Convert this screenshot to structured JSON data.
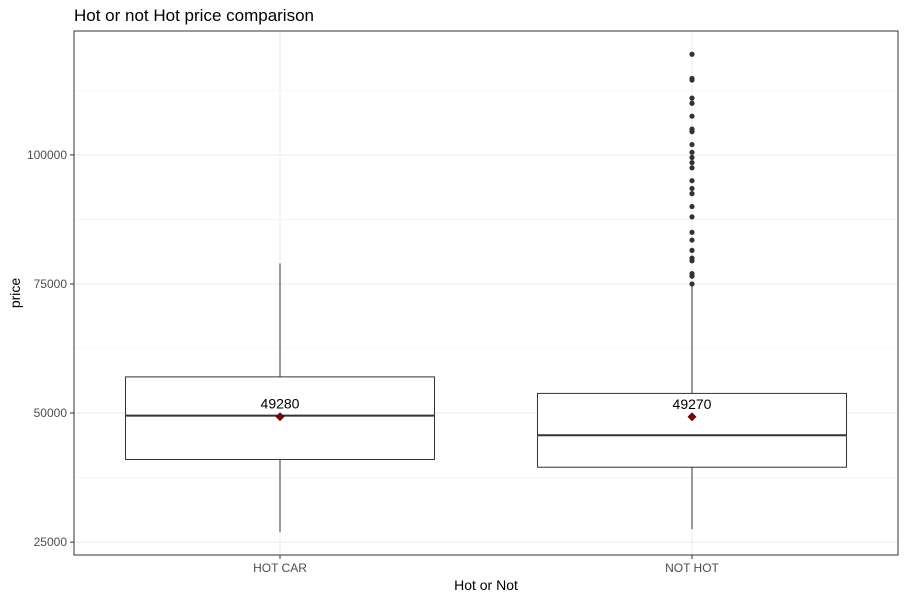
{
  "chart_data": {
    "type": "boxplot",
    "title": "Hot or not Hot price comparison",
    "xlabel": "Hot or Not",
    "ylabel": "price",
    "ylim": [
      22500,
      124000
    ],
    "yticks": [
      25000,
      50000,
      75000,
      100000
    ],
    "ytick_labels": [
      "25000",
      "50000",
      "75000",
      "100000"
    ],
    "grid": true,
    "categories": [
      "HOT CAR",
      "NOT HOT"
    ],
    "boxes": [
      {
        "category": "HOT CAR",
        "whisker_low": 27000,
        "q1": 41000,
        "median": 49500,
        "q3": 57000,
        "whisker_high": 79000,
        "mean": 49280,
        "mean_label": "49280",
        "outliers": []
      },
      {
        "category": "NOT HOT",
        "whisker_low": 27500,
        "q1": 39500,
        "median": 45700,
        "q3": 53800,
        "whisker_high": 75000,
        "mean": 49270,
        "mean_label": "49270",
        "outliers": [
          75000,
          76500,
          77000,
          79500,
          80000,
          81500,
          83500,
          85000,
          88000,
          90000,
          92500,
          93500,
          95000,
          97500,
          98500,
          99500,
          100500,
          102000,
          104500,
          105000,
          107500,
          110000,
          111000,
          114500,
          114800,
          119500
        ]
      }
    ],
    "colors": {
      "box_line": "#333333",
      "mean_marker": "#8b0000",
      "outlier": "#333333",
      "grid": "#ebebeb",
      "panel_border": "#333333"
    }
  }
}
